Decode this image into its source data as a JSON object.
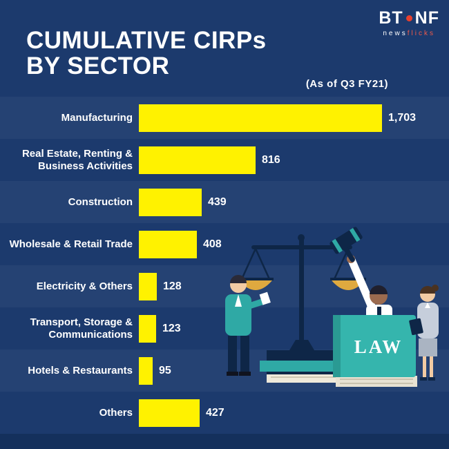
{
  "header": {
    "title_line1": "CUMULATIVE CIRPs",
    "title_line2": "BY SECTOR",
    "subtitle": "(As of Q3 FY21)"
  },
  "logo": {
    "bt": "BT",
    "nf": "NF",
    "tagline_news": "news",
    "tagline_flicks": "flicks"
  },
  "illustration": {
    "law_book_label": "LAW"
  },
  "chart_data": {
    "type": "bar",
    "orientation": "horizontal",
    "title": "CUMULATIVE CIRPs BY SECTOR",
    "subtitle": "(As of Q3 FY21)",
    "categories": [
      "Manufacturing",
      "Real Estate, Renting & Business Activities",
      "Construction",
      "Wholesale & Retail Trade",
      "Electricity & Others",
      "Transport, Storage & Communications",
      "Hotels & Restaurants",
      "Others"
    ],
    "values": [
      1703,
      816,
      439,
      408,
      128,
      123,
      95,
      427
    ],
    "value_labels": [
      "1,703",
      "816",
      "439",
      "408",
      "128",
      "123",
      "95",
      "427"
    ],
    "xlim": [
      0,
      1703
    ],
    "bar_color": "#fff200",
    "background_color": "#1c3a6d",
    "legend": "none",
    "grid": "off"
  }
}
